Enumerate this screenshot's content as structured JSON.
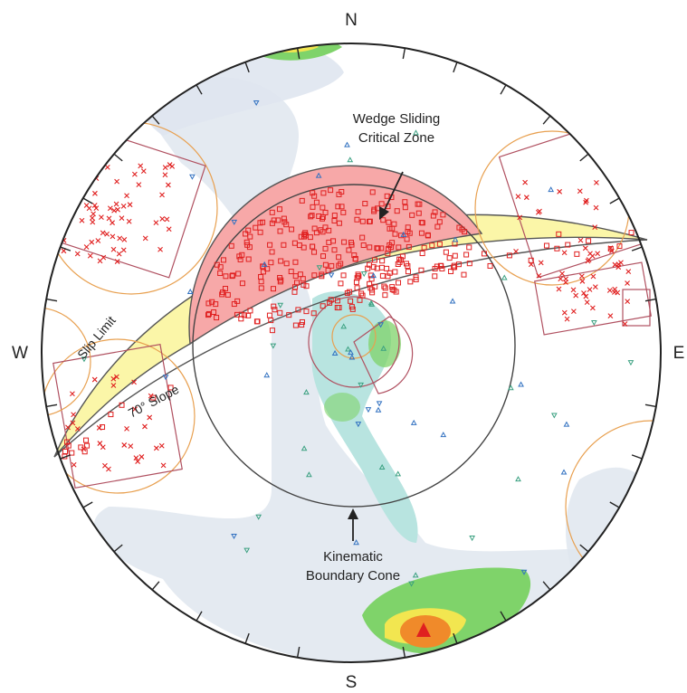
{
  "diagram": {
    "cardinals": {
      "north": "N",
      "south": "S",
      "west": "W",
      "east": "E"
    },
    "annotations": {
      "wedge_zone_line1": "Wedge Sliding",
      "wedge_zone_line2": "Critical Zone",
      "cone_line1": "Kinematic",
      "cone_line2": "Boundary Cone"
    },
    "curve_labels": {
      "slip_limit": "Slip Limit",
      "slope": "70° Slope"
    },
    "colors": {
      "wedge_zone_fill": "#f7a8a8",
      "slip_band_fill": "#fbf6a8",
      "pole_marker": "#e02020",
      "set_window": "#b05060",
      "set_circle": "#e8a050",
      "density_low": "#dfe6ef",
      "density_mid": "#9fdcc8",
      "density_green": "#7fd36a",
      "density_yellow": "#f2e650",
      "density_orange": "#f08a2a",
      "density_peak": "#e02020"
    }
  }
}
